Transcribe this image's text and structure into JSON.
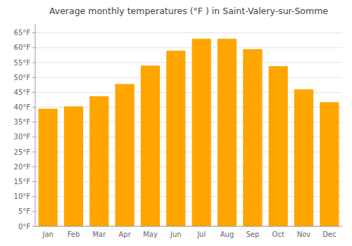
{
  "chart_data": {
    "type": "bar",
    "title": "Average monthly temperatures (°F ) in Saint-Valery-sur-Somme",
    "categories": [
      "Jan",
      "Feb",
      "Mar",
      "Apr",
      "May",
      "Jun",
      "Jul",
      "Aug",
      "Sep",
      "Oct",
      "Nov",
      "Dec"
    ],
    "values": [
      39.5,
      40.3,
      43.7,
      47.8,
      54.0,
      59.0,
      63.0,
      63.0,
      59.5,
      53.8,
      46.0,
      41.7
    ],
    "color": "#FFA500",
    "ylim": [
      0,
      68
    ],
    "yticks": [
      {
        "value": 0,
        "label": "0°F"
      },
      {
        "value": 5,
        "label": "5°F"
      },
      {
        "value": 10,
        "label": "10°F"
      },
      {
        "value": 15,
        "label": "15°F"
      },
      {
        "value": 20,
        "label": "20°F"
      },
      {
        "value": 25,
        "label": "25°F"
      },
      {
        "value": 30,
        "label": "30°F"
      },
      {
        "value": 35,
        "label": "35°F"
      },
      {
        "value": 40,
        "label": "40°F"
      },
      {
        "value": 45,
        "label": "45°F"
      },
      {
        "value": 50,
        "label": "50°F"
      },
      {
        "value": 55,
        "label": "55°F"
      },
      {
        "value": 60,
        "label": "60°F"
      },
      {
        "value": 65,
        "label": "65°F"
      }
    ],
    "grid": true
  }
}
